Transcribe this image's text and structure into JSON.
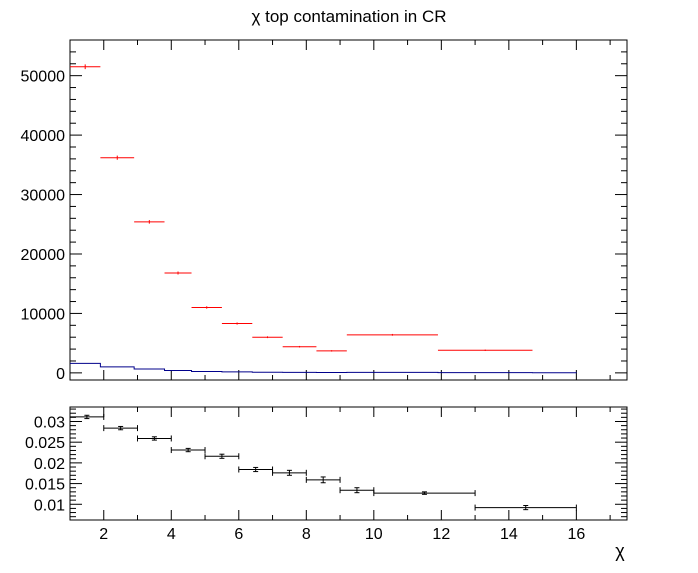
{
  "chart_data": [
    {
      "type": "scatter",
      "title": "χ top contamination in CR",
      "xlabel": "",
      "ylabel": "",
      "xlim": [
        1,
        17.5
      ],
      "ylim": [
        -1200,
        56000
      ],
      "grid": false,
      "x_tick_labels": [
        "2",
        "4",
        "6",
        "8",
        "10",
        "12",
        "14",
        "16"
      ],
      "y_tick_labels": [
        "0",
        "10000",
        "20000",
        "30000",
        "40000",
        "50000"
      ],
      "y_ticks": [
        0,
        10000,
        20000,
        30000,
        40000,
        50000
      ],
      "series": [
        {
          "color": "#ff0000",
          "style": "points-with-x-errors",
          "bins": [
            {
              "lo": 1.0,
              "hi": 1.9,
              "y": 51500,
              "err": 400
            },
            {
              "lo": 1.9,
              "hi": 2.9,
              "y": 36200,
              "err": 350
            },
            {
              "lo": 2.9,
              "hi": 3.8,
              "y": 25400,
              "err": 300
            },
            {
              "lo": 3.8,
              "hi": 4.6,
              "y": 16800,
              "err": 250
            },
            {
              "lo": 4.6,
              "hi": 5.5,
              "y": 11000,
              "err": 200
            },
            {
              "lo": 5.5,
              "hi": 6.4,
              "y": 8300,
              "err": 180
            },
            {
              "lo": 6.4,
              "hi": 7.3,
              "y": 6000,
              "err": 150
            },
            {
              "lo": 7.3,
              "hi": 8.3,
              "y": 4400,
              "err": 130
            },
            {
              "lo": 8.3,
              "hi": 9.2,
              "y": 3700,
              "err": 120
            },
            {
              "lo": 9.2,
              "hi": 11.9,
              "y": 6400,
              "err": 150
            },
            {
              "lo": 11.9,
              "hi": 14.7,
              "y": 3800,
              "err": 120
            }
          ]
        },
        {
          "color": "#00008b",
          "style": "step",
          "bins": [
            {
              "lo": 1.0,
              "hi": 1.9,
              "y": 1600
            },
            {
              "lo": 1.9,
              "hi": 2.9,
              "y": 1000
            },
            {
              "lo": 2.9,
              "hi": 3.8,
              "y": 650
            },
            {
              "lo": 3.8,
              "hi": 4.6,
              "y": 400
            },
            {
              "lo": 4.6,
              "hi": 5.5,
              "y": 230
            },
            {
              "lo": 5.5,
              "hi": 6.4,
              "y": 160
            },
            {
              "lo": 6.4,
              "hi": 7.3,
              "y": 110
            },
            {
              "lo": 7.3,
              "hi": 8.3,
              "y": 80
            },
            {
              "lo": 8.3,
              "hi": 9.2,
              "y": 55
            },
            {
              "lo": 9.2,
              "hi": 11.9,
              "y": 90
            },
            {
              "lo": 11.9,
              "hi": 14.7,
              "y": 45
            },
            {
              "lo": 14.7,
              "hi": 16.0,
              "y": 20
            }
          ]
        }
      ]
    },
    {
      "type": "scatter",
      "title": "",
      "xlabel": "χ",
      "ylabel": "",
      "xlim": [
        1,
        17.5
      ],
      "ylim": [
        0.0062,
        0.0335
      ],
      "grid": false,
      "x_tick_labels": [
        "2",
        "4",
        "6",
        "8",
        "10",
        "12",
        "14",
        "16"
      ],
      "y_tick_labels": [
        "0.01",
        "0.015",
        "0.02",
        "0.025",
        "0.03"
      ],
      "y_ticks": [
        0.01,
        0.015,
        0.02,
        0.025,
        0.03
      ],
      "series": [
        {
          "color": "#000000",
          "style": "points-with-errors",
          "bins": [
            {
              "lo": 1.0,
              "hi": 2.0,
              "y": 0.0311,
              "err": 0.0004
            },
            {
              "lo": 2.0,
              "hi": 3.0,
              "y": 0.0284,
              "err": 0.0004
            },
            {
              "lo": 3.0,
              "hi": 4.0,
              "y": 0.0259,
              "err": 0.0004
            },
            {
              "lo": 4.0,
              "hi": 5.0,
              "y": 0.0231,
              "err": 0.0004
            },
            {
              "lo": 5.0,
              "hi": 6.0,
              "y": 0.0216,
              "err": 0.0005
            },
            {
              "lo": 6.0,
              "hi": 7.0,
              "y": 0.0184,
              "err": 0.0005
            },
            {
              "lo": 7.0,
              "hi": 8.0,
              "y": 0.0176,
              "err": 0.0006
            },
            {
              "lo": 8.0,
              "hi": 9.0,
              "y": 0.0159,
              "err": 0.0007
            },
            {
              "lo": 9.0,
              "hi": 10.0,
              "y": 0.0134,
              "err": 0.0006
            },
            {
              "lo": 10.0,
              "hi": 13.0,
              "y": 0.0127,
              "err": 0.0003
            },
            {
              "lo": 13.0,
              "hi": 16.0,
              "y": 0.0092,
              "err": 0.0005
            }
          ]
        }
      ]
    }
  ]
}
